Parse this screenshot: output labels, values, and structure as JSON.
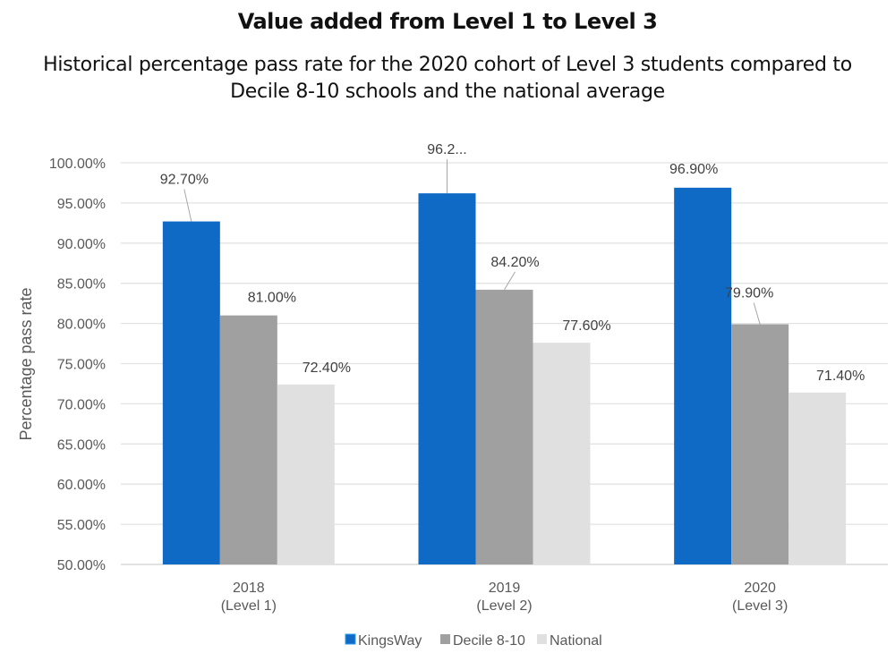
{
  "chart_data": {
    "type": "bar",
    "title": "Value added from Level 1 to Level 3",
    "subtitle": "Historical percentage pass rate for the 2020 cohort of Level 3 students compared to Decile 8-10 schools and the national average",
    "subtitle_lines": [
      "Historical percentage pass rate for the 2020 cohort of Level 3 students compared to",
      "Decile 8-10 schools and the national average"
    ],
    "xlabel": "",
    "ylabel": "Percentage pass rate",
    "ylim": [
      50,
      100
    ],
    "yticks": [
      50,
      55,
      60,
      65,
      70,
      75,
      80,
      85,
      90,
      95,
      100
    ],
    "ytick_labels": [
      "50.00%",
      "55.00%",
      "60.00%",
      "65.00%",
      "70.00%",
      "75.00%",
      "80.00%",
      "85.00%",
      "90.00%",
      "95.00%",
      "100.00%"
    ],
    "grid": true,
    "categories": [
      {
        "year": "2018",
        "level": "(Level 1)"
      },
      {
        "year": "2019",
        "level": "(Level 2)"
      },
      {
        "year": "2020",
        "level": "(Level 3)"
      }
    ],
    "series": [
      {
        "name": "KingsWay",
        "color": "#0F6AC6",
        "values": [
          92.7,
          96.2,
          96.9
        ],
        "labels": [
          "92.70%",
          "96.2...",
          "96.90%"
        ]
      },
      {
        "name": "Decile 8-10",
        "color": "#A0A0A0",
        "values": [
          81.0,
          84.2,
          79.9
        ],
        "labels": [
          "81.00%",
          "84.20%",
          "79.90%"
        ]
      },
      {
        "name": "National",
        "color": "#E0E0E0",
        "values": [
          72.4,
          77.6,
          71.4
        ],
        "labels": [
          "72.40%",
          "77.60%",
          "71.40%"
        ]
      }
    ],
    "legend_position": "bottom"
  }
}
